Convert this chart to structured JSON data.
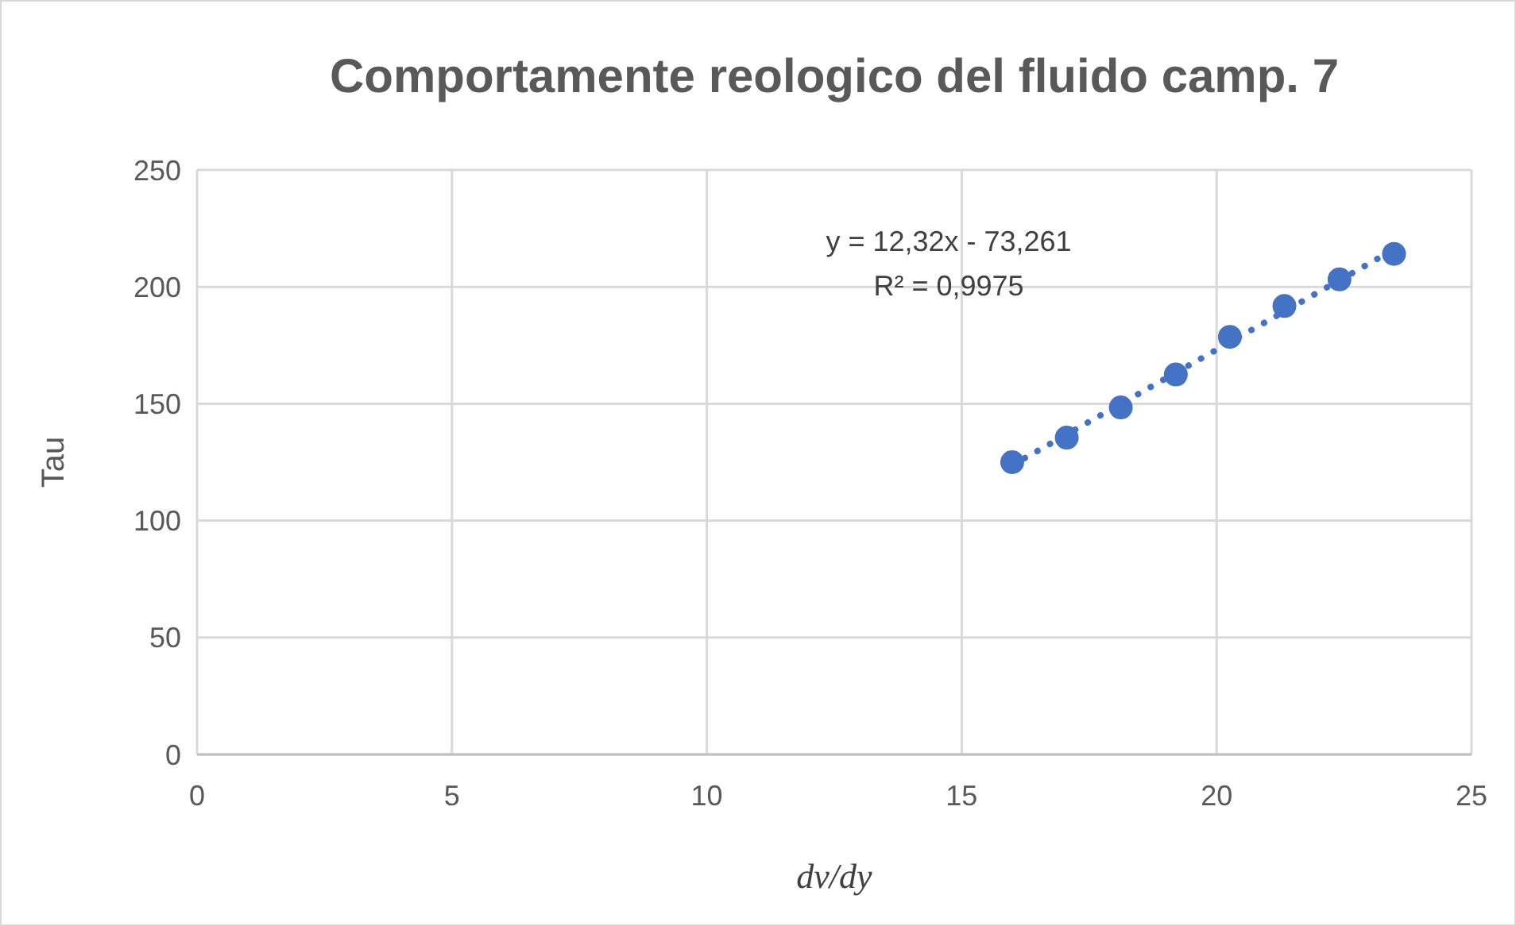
{
  "chart_data": {
    "type": "scatter",
    "title": "Comportamente reologico del fluido camp. 7",
    "xlabel": "dv/dy",
    "ylabel": "Tau",
    "x": [
      15.99,
      17.06,
      18.12,
      19.2,
      20.26,
      21.33,
      22.41,
      23.48
    ],
    "series": [
      {
        "color": "#4472c4",
        "marker": "circle",
        "values": [
          125,
          135.5,
          148.4,
          162.5,
          178.6,
          191.8,
          203.2,
          214.1
        ]
      },
      {
        "type": "line",
        "color": "#4472c4",
        "line_style": "dotted",
        "x": [
          15.99,
          23.48
        ],
        "values": [
          123.7,
          216
        ]
      }
    ],
    "annotations": [
      "y = 12,32x - 73,261",
      "R² = 0,9975"
    ],
    "xlim": [
      0,
      25
    ],
    "xticks": [
      0,
      5,
      10,
      15,
      20,
      25
    ],
    "ylim": [
      0,
      250
    ],
    "yticks": [
      0,
      50,
      100,
      150,
      200,
      250
    ],
    "grid": true
  }
}
